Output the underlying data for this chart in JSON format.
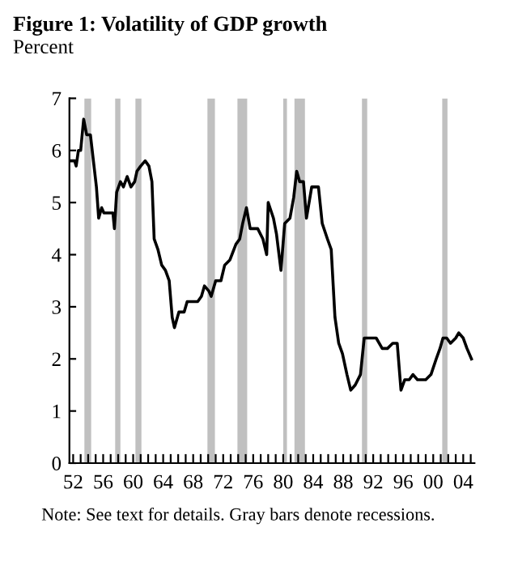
{
  "chart_data": {
    "type": "line",
    "title": "Figure 1: Volatility of GDP growth",
    "ylabel": "Percent",
    "annotations": [
      "Note: See text for details. Gray bars denote recessions."
    ],
    "x": [
      1951.6,
      1952.2,
      1952.4,
      1952.7,
      1953.0,
      1953.4,
      1953.8,
      1954.3,
      1954.7,
      1955.1,
      1955.4,
      1955.8,
      1956.1,
      1956.6,
      1957.3,
      1957.5,
      1957.8,
      1958.3,
      1958.7,
      1959.2,
      1959.7,
      1960.2,
      1960.5,
      1961.0,
      1961.6,
      1962.1,
      1962.5,
      1962.8,
      1963.3,
      1963.8,
      1964.3,
      1964.8,
      1965.2,
      1965.5,
      1966.1,
      1966.8,
      1967.2,
      1967.9,
      1968.6,
      1969.1,
      1969.5,
      1970.1,
      1970.4,
      1971.0,
      1971.7,
      1972.2,
      1972.9,
      1973.7,
      1974.2,
      1974.6,
      1975.1,
      1975.6,
      1976.6,
      1977.3,
      1977.8,
      1978.0,
      1978.7,
      1979.1,
      1979.7,
      1980.2,
      1980.9,
      1981.4,
      1981.8,
      1982.2,
      1982.7,
      1983.1,
      1983.8,
      1984.1,
      1984.7,
      1985.2,
      1985.9,
      1986.4,
      1986.9,
      1987.4,
      1987.9,
      1988.5,
      1989.0,
      1989.6,
      1990.3,
      1990.8,
      1991.5,
      1992.4,
      1993.2,
      1993.9,
      1994.6,
      1995.2,
      1995.7,
      1996.2,
      1996.8,
      1997.3,
      1997.9,
      1999.0,
      1999.7,
      2000.4,
      2000.9,
      2001.3,
      2001.8,
      2002.3,
      2003.0,
      2003.4,
      2004.0,
      2004.5,
      2005.1
    ],
    "series": [
      {
        "color": "#000000",
        "values": [
          5.8,
          5.8,
          5.7,
          6.0,
          6.0,
          6.6,
          6.3,
          6.3,
          5.8,
          5.3,
          4.7,
          4.9,
          4.8,
          4.8,
          4.8,
          4.5,
          5.2,
          5.4,
          5.3,
          5.5,
          5.3,
          5.4,
          5.6,
          5.7,
          5.8,
          5.7,
          5.4,
          4.3,
          4.1,
          3.8,
          3.7,
          3.5,
          2.8,
          2.6,
          2.9,
          2.9,
          3.1,
          3.1,
          3.1,
          3.2,
          3.4,
          3.3,
          3.2,
          3.5,
          3.5,
          3.8,
          3.9,
          4.2,
          4.3,
          4.6,
          4.9,
          4.5,
          4.5,
          4.3,
          4.0,
          5.0,
          4.7,
          4.4,
          3.7,
          4.6,
          4.7,
          5.1,
          5.6,
          5.4,
          5.4,
          4.7,
          5.3,
          5.3,
          5.3,
          4.6,
          4.3,
          4.1,
          2.8,
          2.3,
          2.1,
          1.7,
          1.4,
          1.5,
          1.7,
          2.4,
          2.4,
          2.4,
          2.2,
          2.2,
          2.3,
          2.3,
          1.4,
          1.6,
          1.6,
          1.7,
          1.6,
          1.6,
          1.7,
          2.0,
          2.2,
          2.4,
          2.4,
          2.3,
          2.4,
          2.5,
          2.4,
          2.2,
          2.0
        ]
      }
    ],
    "bands": [
      {
        "axis": "x",
        "from": 1953.5,
        "to": 1954.4,
        "color": "#c0c0c0"
      },
      {
        "axis": "x",
        "from": 1957.6,
        "to": 1958.3,
        "color": "#c0c0c0"
      },
      {
        "axis": "x",
        "from": 1960.3,
        "to": 1961.1,
        "color": "#c0c0c0"
      },
      {
        "axis": "x",
        "from": 1969.9,
        "to": 1970.9,
        "color": "#c0c0c0"
      },
      {
        "axis": "x",
        "from": 1973.9,
        "to": 1975.2,
        "color": "#c0c0c0"
      },
      {
        "axis": "x",
        "from": 1980.0,
        "to": 1980.5,
        "color": "#c0c0c0"
      },
      {
        "axis": "x",
        "from": 1981.5,
        "to": 1982.9,
        "color": "#c0c0c0"
      },
      {
        "axis": "x",
        "from": 1990.5,
        "to": 1991.2,
        "color": "#c0c0c0"
      },
      {
        "axis": "x",
        "from": 2001.2,
        "to": 2001.9,
        "color": "#c0c0c0"
      }
    ],
    "xlim": [
      1951.5,
      2005.5
    ],
    "xticks": [
      {
        "value": 1952,
        "label": "52"
      },
      {
        "value": 1953,
        "label": null
      },
      {
        "value": 1954,
        "label": null
      },
      {
        "value": 1955,
        "label": null
      },
      {
        "value": 1956,
        "label": "56"
      },
      {
        "value": 1957,
        "label": null
      },
      {
        "value": 1958,
        "label": null
      },
      {
        "value": 1959,
        "label": null
      },
      {
        "value": 1960,
        "label": "60"
      },
      {
        "value": 1961,
        "label": null
      },
      {
        "value": 1962,
        "label": null
      },
      {
        "value": 1963,
        "label": null
      },
      {
        "value": 1964,
        "label": "64"
      },
      {
        "value": 1965,
        "label": null
      },
      {
        "value": 1966,
        "label": null
      },
      {
        "value": 1967,
        "label": null
      },
      {
        "value": 1968,
        "label": "68"
      },
      {
        "value": 1969,
        "label": null
      },
      {
        "value": 1970,
        "label": null
      },
      {
        "value": 1971,
        "label": null
      },
      {
        "value": 1972,
        "label": "72"
      },
      {
        "value": 1973,
        "label": null
      },
      {
        "value": 1974,
        "label": null
      },
      {
        "value": 1975,
        "label": null
      },
      {
        "value": 1976,
        "label": "76"
      },
      {
        "value": 1977,
        "label": null
      },
      {
        "value": 1978,
        "label": null
      },
      {
        "value": 1979,
        "label": null
      },
      {
        "value": 1980,
        "label": "80"
      },
      {
        "value": 1981,
        "label": null
      },
      {
        "value": 1982,
        "label": null
      },
      {
        "value": 1983,
        "label": null
      },
      {
        "value": 1984,
        "label": "84"
      },
      {
        "value": 1985,
        "label": null
      },
      {
        "value": 1986,
        "label": null
      },
      {
        "value": 1987,
        "label": null
      },
      {
        "value": 1988,
        "label": "88"
      },
      {
        "value": 1989,
        "label": null
      },
      {
        "value": 1990,
        "label": null
      },
      {
        "value": 1991,
        "label": null
      },
      {
        "value": 1992,
        "label": "92"
      },
      {
        "value": 1993,
        "label": null
      },
      {
        "value": 1994,
        "label": null
      },
      {
        "value": 1995,
        "label": null
      },
      {
        "value": 1996,
        "label": "96"
      },
      {
        "value": 1997,
        "label": null
      },
      {
        "value": 1998,
        "label": null
      },
      {
        "value": 1999,
        "label": null
      },
      {
        "value": 2000,
        "label": "00"
      },
      {
        "value": 2001,
        "label": null
      },
      {
        "value": 2002,
        "label": null
      },
      {
        "value": 2003,
        "label": null
      },
      {
        "value": 2004,
        "label": "04"
      },
      {
        "value": 2005,
        "label": null
      }
    ],
    "ylim": [
      0,
      7
    ],
    "yticks": [
      0,
      1,
      2,
      3,
      4,
      5,
      6,
      7
    ],
    "grid": false,
    "marker": "none",
    "line_style": "solid"
  }
}
